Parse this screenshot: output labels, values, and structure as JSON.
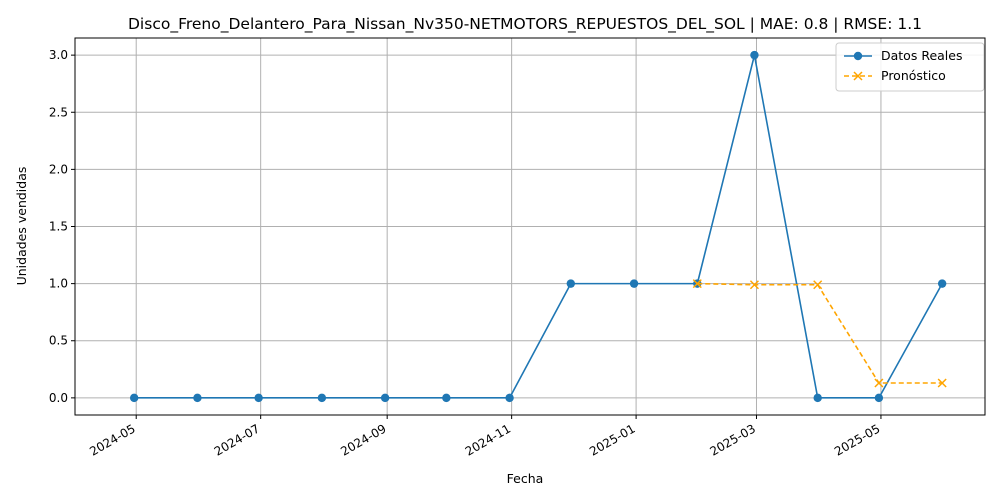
{
  "chart_data": {
    "type": "line",
    "title": "Disco_Freno_Delantero_Para_Nissan_Nv350-NETMOTORS_REPUESTOS_DEL_SOL | MAE: 0.8 | RMSE: 1.1",
    "xlabel": "Fecha",
    "ylabel": "Unidades vendidas",
    "xlim": [
      "2024-04-01",
      "2025-06-21"
    ],
    "ylim": [
      -0.15,
      3.15
    ],
    "x_ticks": [
      "2024-05",
      "2024-07",
      "2024-09",
      "2024-11",
      "2025-01",
      "2025-03",
      "2025-05"
    ],
    "y_ticks": [
      "0.0",
      "0.5",
      "1.0",
      "1.5",
      "2.0",
      "2.5",
      "3.0"
    ],
    "grid": true,
    "legend_position": "top-right",
    "series": [
      {
        "name": "Datos Reales",
        "color": "#1f77b4",
        "style": "solid",
        "marker": "circle",
        "x": [
          "2024-04-30",
          "2024-05-31",
          "2024-06-30",
          "2024-07-31",
          "2024-08-31",
          "2024-09-30",
          "2024-10-31",
          "2024-11-30",
          "2024-12-31",
          "2025-01-31",
          "2025-02-28",
          "2025-03-31",
          "2025-04-30",
          "2025-05-31"
        ],
        "values": [
          0,
          0,
          0,
          0,
          0,
          0,
          0,
          1,
          1,
          1,
          3,
          0,
          0,
          1
        ]
      },
      {
        "name": "Pronóstico",
        "color": "#ffa500",
        "style": "dashed",
        "marker": "x",
        "x": [
          "2025-01-31",
          "2025-02-28",
          "2025-03-31",
          "2025-04-30",
          "2025-05-31"
        ],
        "values": [
          1.0,
          0.99,
          0.99,
          0.13,
          0.13
        ]
      }
    ]
  }
}
